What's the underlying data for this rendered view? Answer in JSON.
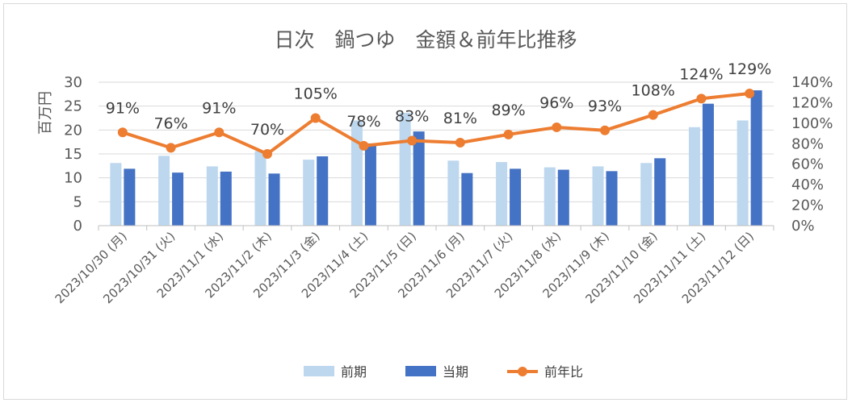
{
  "chart_data": {
    "type": "bar",
    "title": "日次　鍋つゆ　金額＆前年比推移",
    "ylabel": "百万円",
    "y2label": "",
    "ylim": [
      0,
      30
    ],
    "y_ticks": [
      0,
      5,
      10,
      15,
      20,
      25,
      30
    ],
    "y2lim": [
      0,
      1.4
    ],
    "y2_ticks": [
      "0%",
      "20%",
      "40%",
      "60%",
      "80%",
      "100%",
      "120%",
      "140%"
    ],
    "categories": [
      "2023/10/30 (月)",
      "2023/10/31 (火)",
      "2023/11/1 (水)",
      "2023/11/2 (木)",
      "2023/11/3 (金)",
      "2023/11/4 (土)",
      "2023/11/5 (日)",
      "2023/11/6 (月)",
      "2023/11/7 (火)",
      "2023/11/8 (水)",
      "2023/11/9 (木)",
      "2023/11/10 (金)",
      "2023/11/11 (土)",
      "2023/11/12 (日)"
    ],
    "series": [
      {
        "name": "前期",
        "kind": "bar",
        "axis": "left",
        "color": "#bdd7ee",
        "values": [
          13.1,
          14.6,
          12.4,
          15.6,
          13.8,
          22.0,
          23.6,
          13.6,
          13.3,
          12.2,
          12.4,
          13.1,
          20.6,
          22.0
        ]
      },
      {
        "name": "当期",
        "kind": "bar",
        "axis": "left",
        "color": "#4472c4",
        "values": [
          11.9,
          11.1,
          11.3,
          10.9,
          14.5,
          17.2,
          19.7,
          11.0,
          11.9,
          11.7,
          11.4,
          14.1,
          25.5,
          28.3
        ]
      },
      {
        "name": "前年比",
        "kind": "line",
        "axis": "right",
        "color": "#ed7d31",
        "values": [
          0.91,
          0.76,
          0.91,
          0.7,
          1.05,
          0.78,
          0.83,
          0.81,
          0.89,
          0.96,
          0.93,
          1.08,
          1.24,
          1.29
        ],
        "labels": [
          "91%",
          "76%",
          "91%",
          "70%",
          "105%",
          "78%",
          "83%",
          "81%",
          "89%",
          "96%",
          "93%",
          "108%",
          "124%",
          "129%"
        ]
      }
    ],
    "grid": true,
    "legend_position": "bottom"
  }
}
